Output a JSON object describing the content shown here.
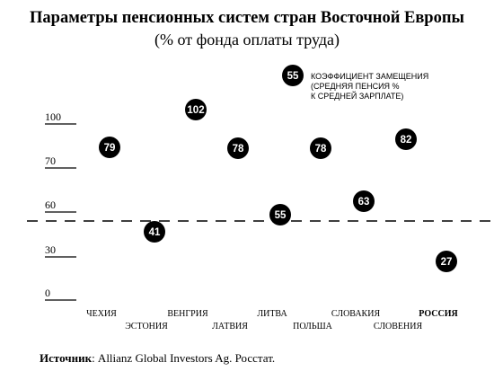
{
  "title": "Параметры пенсионных систем стран Восточной Европы",
  "subtitle": "(% от фонда оплаты труда)",
  "legend": {
    "marker_value": "55",
    "text": "КОЭФФИЦИЕНТ ЗАМЕЩЕНИЯ\n(СРЕДНЯЯ ПЕНСИЯ %\nК СРЕДНЕЙ ЗАРПЛАТЕ)"
  },
  "source": {
    "label": "Источник",
    "text": ": Allianz Global Investors Ag. Росстат."
  },
  "chart_data": {
    "type": "scatter",
    "y_ticks": [
      "100",
      "70",
      "60",
      "30",
      "0"
    ],
    "reference_line": "dashed",
    "points": [
      {
        "category": "ЧЕХИЯ",
        "value": 79,
        "label_row": "upper"
      },
      {
        "category": "ЭСТОНИЯ",
        "value": 41,
        "label_row": "lower"
      },
      {
        "category": "ВЕНГРИЯ",
        "value": 102,
        "label_row": "upper"
      },
      {
        "category": "ЛАТВИЯ",
        "value": 78,
        "label_row": "lower"
      },
      {
        "category": "ЛИТВА",
        "value": 55,
        "label_row": "upper"
      },
      {
        "category": "ПОЛЬША",
        "value": 78,
        "label_row": "lower"
      },
      {
        "category": "СЛОВАКИЯ",
        "value": 63,
        "label_row": "upper"
      },
      {
        "category": "СЛОВЕНИЯ",
        "value": 82,
        "label_row": "lower"
      },
      {
        "category": "РОССИЯ",
        "value": 27,
        "label_row": "upper",
        "bold": true
      }
    ]
  }
}
